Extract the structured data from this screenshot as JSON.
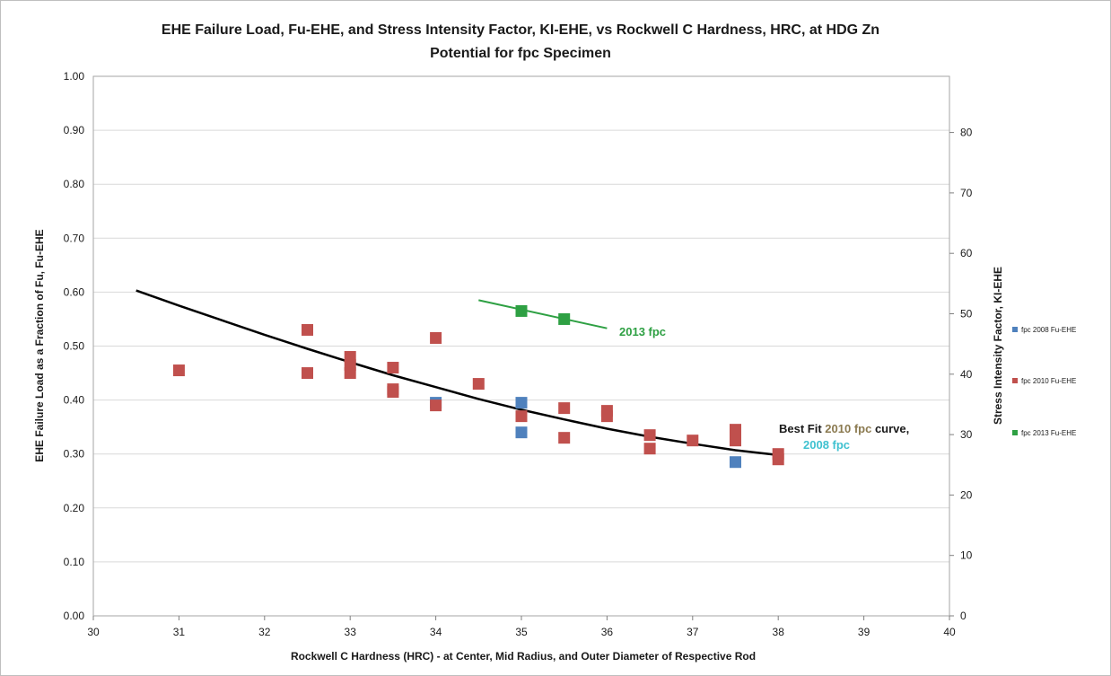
{
  "chart_data": {
    "type": "scatter",
    "title_line1": "EHE Failure Load, Fu-EHE, and Stress Intensity Factor, KI-EHE, vs Rockwell C Hardness, HRC, at HDG Zn",
    "title_line2": "Potential for fpc Specimen",
    "xlabel": "Rockwell C Hardness (HRC) - at  Center, Mid Radius, and Outer Diameter of Respective Rod",
    "ylabel": "EHE Failure Load as a Fraction of Fu, Fu-EHE",
    "y2label": "Stress Intensity Factor, KI-EHE",
    "xlim": [
      30,
      40
    ],
    "ylim": [
      0,
      1
    ],
    "y2lim": [
      0,
      89.3
    ],
    "xticks": [
      "30",
      "31",
      "32",
      "33",
      "34",
      "35",
      "36",
      "37",
      "38",
      "39",
      "40"
    ],
    "yticks": [
      "0.00",
      "0.10",
      "0.20",
      "0.30",
      "0.40",
      "0.50",
      "0.60",
      "0.70",
      "0.80",
      "0.90",
      "1.00"
    ],
    "y2ticks": [
      "0",
      "10",
      "20",
      "30",
      "40",
      "50",
      "60",
      "70",
      "80"
    ],
    "grid": "horizontal",
    "legend_position": "right",
    "series": [
      {
        "name": "fpc 2008 Fu-EHE",
        "color": "#4f81bd",
        "points": [
          [
            34.0,
            0.395
          ],
          [
            35.0,
            0.395
          ],
          [
            35.0,
            0.34
          ],
          [
            37.5,
            0.285
          ]
        ]
      },
      {
        "name": "fpc 2010 Fu-EHE",
        "color": "#c0504d",
        "points": [
          [
            31.0,
            0.455
          ],
          [
            32.5,
            0.53
          ],
          [
            32.5,
            0.45
          ],
          [
            33.0,
            0.48
          ],
          [
            33.0,
            0.465
          ],
          [
            33.0,
            0.45
          ],
          [
            33.5,
            0.46
          ],
          [
            33.5,
            0.42
          ],
          [
            33.5,
            0.415
          ],
          [
            34.0,
            0.515
          ],
          [
            34.0,
            0.39
          ],
          [
            34.5,
            0.43
          ],
          [
            35.0,
            0.37
          ],
          [
            35.5,
            0.385
          ],
          [
            35.5,
            0.33
          ],
          [
            36.0,
            0.38
          ],
          [
            36.0,
            0.37
          ],
          [
            36.5,
            0.335
          ],
          [
            36.5,
            0.31
          ],
          [
            37.0,
            0.325
          ],
          [
            37.5,
            0.345
          ],
          [
            37.5,
            0.325
          ],
          [
            38.0,
            0.3
          ],
          [
            38.0,
            0.29
          ]
        ]
      },
      {
        "name": "fpc 2013 Fu-EHE",
        "color": "#2ea043",
        "points": [
          [
            35.0,
            0.565
          ],
          [
            35.5,
            0.55
          ]
        ]
      }
    ],
    "fit_curves": [
      {
        "color": "#000000",
        "points": [
          [
            30.5,
            0.603
          ],
          [
            31.0,
            0.575
          ],
          [
            31.5,
            0.548
          ],
          [
            32.0,
            0.521
          ],
          [
            32.5,
            0.495
          ],
          [
            33.0,
            0.47
          ],
          [
            33.5,
            0.446
          ],
          [
            34.0,
            0.424
          ],
          [
            34.5,
            0.402
          ],
          [
            35.0,
            0.382
          ],
          [
            35.5,
            0.364
          ],
          [
            36.0,
            0.347
          ],
          [
            36.5,
            0.332
          ],
          [
            37.0,
            0.319
          ],
          [
            37.5,
            0.307
          ],
          [
            38.0,
            0.298
          ]
        ]
      },
      {
        "color": "#2ea043",
        "points": [
          [
            34.5,
            0.585
          ],
          [
            36.0,
            0.533
          ]
        ]
      }
    ],
    "annotations": {
      "fit2013": {
        "text": "2013 fpc",
        "color": "#2ea043"
      },
      "best_fit_a": {
        "text": "Best Fit ",
        "color": "#1a1a1a"
      },
      "best_fit_b": {
        "text": "2010 fpc",
        "color": "#8b7a50"
      },
      "best_fit_c": {
        "text": " curve,",
        "color": "#1a1a1a"
      },
      "fit2008": {
        "text": "2008 fpc",
        "color": "#3fc1d0"
      }
    }
  }
}
